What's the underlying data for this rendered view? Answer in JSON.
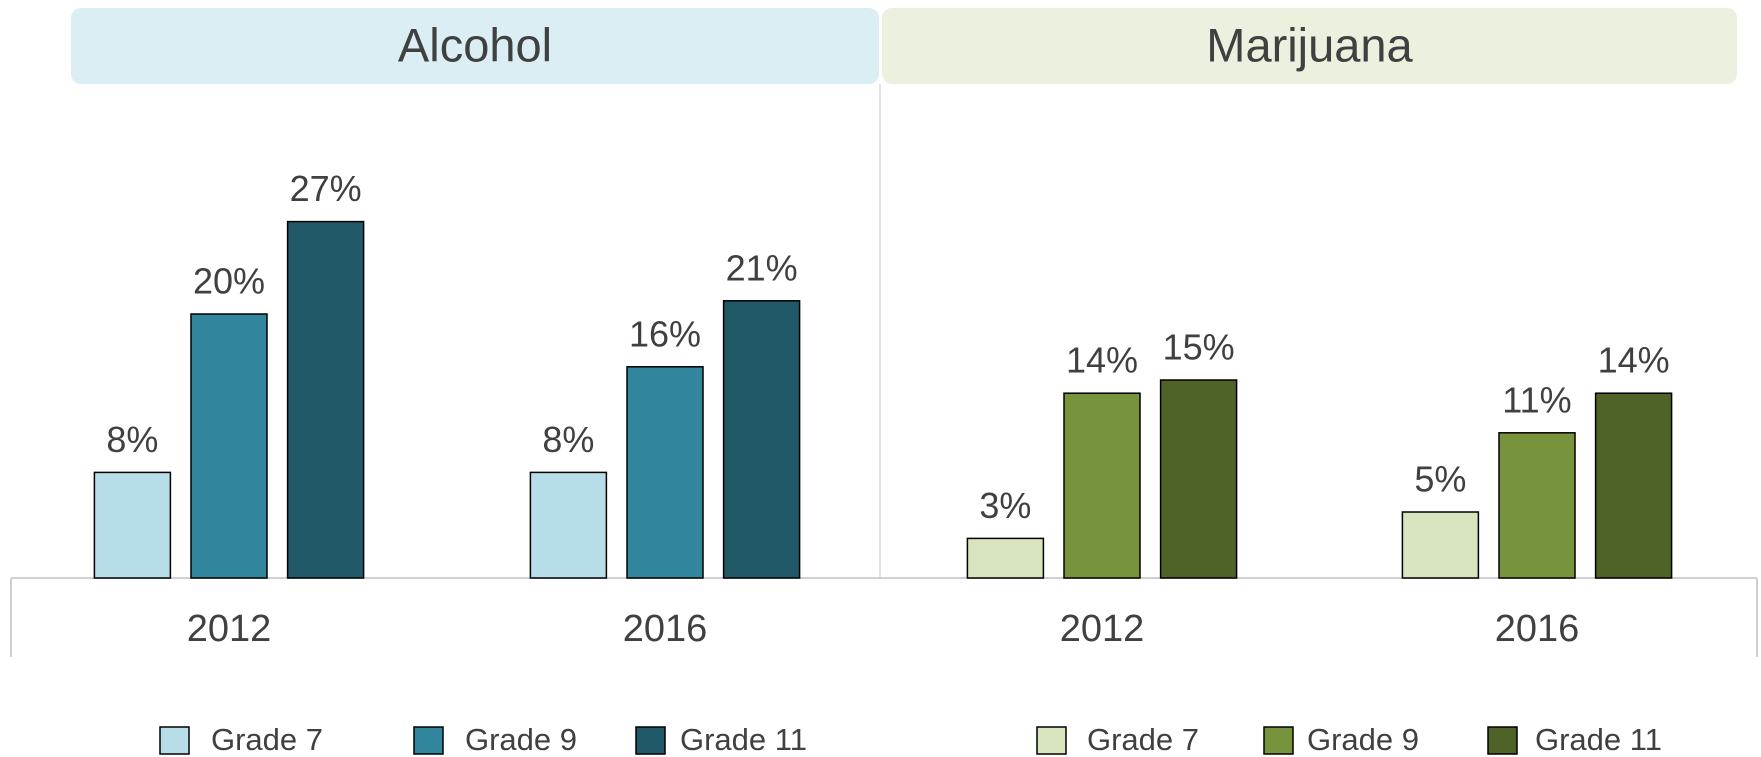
{
  "chart_data": [
    {
      "type": "bar",
      "title": "Alcohol",
      "categories": [
        "2012",
        "2016"
      ],
      "header_color": "#daeef3",
      "series": [
        {
          "name": "Grade 7",
          "color": "#b7dde8",
          "values": [
            8,
            8
          ],
          "value_labels": [
            "8%",
            "8%"
          ]
        },
        {
          "name": "Grade 9",
          "color": "#31859c",
          "values": [
            20,
            16
          ],
          "value_labels": [
            "20%",
            "16%"
          ]
        },
        {
          "name": "Grade 11",
          "color": "#215968",
          "values": [
            27,
            21
          ],
          "value_labels": [
            "27%",
            "21%"
          ]
        }
      ]
    },
    {
      "type": "bar",
      "title": "Marijuana",
      "categories": [
        "2012",
        "2016"
      ],
      "header_color": "#ebf1de",
      "series": [
        {
          "name": "Grade 7",
          "color": "#d7e4bd",
          "values": [
            3,
            5
          ],
          "value_labels": [
            "3%",
            "5%"
          ]
        },
        {
          "name": "Grade 9",
          "color": "#77933c",
          "values": [
            14,
            11
          ],
          "value_labels": [
            "14%",
            "11%"
          ]
        },
        {
          "name": "Grade 11",
          "color": "#4f6228",
          "values": [
            15,
            14
          ],
          "value_labels": [
            "15%",
            "14%"
          ]
        }
      ]
    }
  ]
}
